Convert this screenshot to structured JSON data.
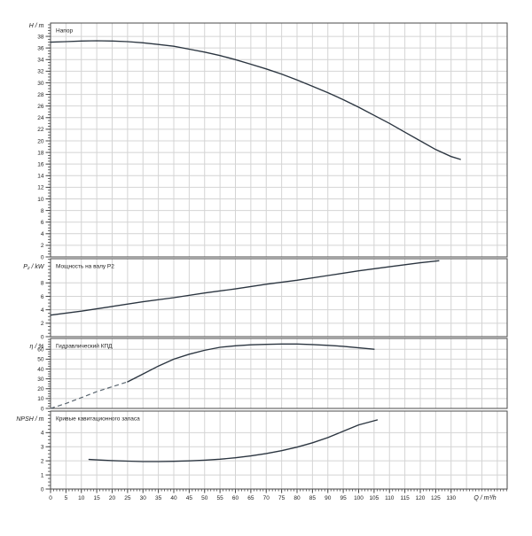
{
  "colors": {
    "background": "#ffffff",
    "curve": "#2b3540",
    "curve_dashed": "#5a6670",
    "grid": "#d4d4d4",
    "frame": "#4a4a4a",
    "text": "#222222"
  },
  "x_axis": {
    "label": "Q / m³/h",
    "tick_labels": [
      0,
      5,
      10,
      15,
      20,
      25,
      30,
      35,
      40,
      45,
      50,
      55,
      60,
      65,
      70,
      75,
      80,
      85,
      90,
      95,
      100,
      105,
      110,
      115,
      120,
      125,
      130
    ],
    "major_step": 5,
    "minor_step": 1,
    "range": [
      0,
      148
    ]
  },
  "chart_data": [
    {
      "type": "line",
      "name": "head",
      "curve_label": "Напор",
      "axis_label": "H / m",
      "y_tick_labels": [
        0,
        2,
        4,
        6,
        8,
        10,
        12,
        14,
        16,
        18,
        20,
        22,
        24,
        26,
        28,
        30,
        32,
        34,
        36,
        38
      ],
      "y_minor_step": 0.5,
      "y_range": [
        0,
        40.3
      ],
      "points": [
        [
          0,
          37.0
        ],
        [
          5,
          37.1
        ],
        [
          10,
          37.2
        ],
        [
          15,
          37.25
        ],
        [
          20,
          37.2
        ],
        [
          25,
          37.1
        ],
        [
          30,
          36.9
        ],
        [
          35,
          36.6
        ],
        [
          40,
          36.3
        ],
        [
          45,
          35.8
        ],
        [
          50,
          35.3
        ],
        [
          55,
          34.7
        ],
        [
          60,
          34.0
        ],
        [
          65,
          33.2
        ],
        [
          70,
          32.4
        ],
        [
          75,
          31.5
        ],
        [
          80,
          30.5
        ],
        [
          85,
          29.4
        ],
        [
          90,
          28.3
        ],
        [
          95,
          27.1
        ],
        [
          100,
          25.8
        ],
        [
          105,
          24.4
        ],
        [
          110,
          23.0
        ],
        [
          115,
          21.5
        ],
        [
          120,
          20.0
        ],
        [
          125,
          18.5
        ],
        [
          130,
          17.3
        ],
        [
          133,
          16.8
        ]
      ]
    },
    {
      "type": "line",
      "name": "power",
      "curve_label": "Мощность на валу P2",
      "axis_label": "P₂ / kW",
      "y_tick_labels": [
        0,
        2,
        4,
        6,
        8
      ],
      "y_minor_step": 0.5,
      "y_range": [
        0,
        11.6
      ],
      "points": [
        [
          0,
          3.2
        ],
        [
          10,
          3.8
        ],
        [
          20,
          4.5
        ],
        [
          30,
          5.2
        ],
        [
          40,
          5.8
        ],
        [
          50,
          6.5
        ],
        [
          60,
          7.1
        ],
        [
          70,
          7.8
        ],
        [
          80,
          8.4
        ],
        [
          90,
          9.1
        ],
        [
          100,
          9.8
        ],
        [
          110,
          10.4
        ],
        [
          120,
          11.0
        ],
        [
          126,
          11.3
        ]
      ]
    },
    {
      "type": "line",
      "name": "efficiency",
      "curve_label": "Гидравлический КПД",
      "axis_label": "η / %",
      "y_tick_labels": [
        0,
        10,
        20,
        30,
        40,
        50,
        60
      ],
      "y_minor_step": 2.5,
      "y_range": [
        0,
        71
      ],
      "points_dashed": [
        [
          0,
          0
        ],
        [
          5,
          5
        ],
        [
          10,
          11
        ],
        [
          15,
          17
        ],
        [
          20,
          22
        ],
        [
          25,
          27
        ]
      ],
      "points": [
        [
          25,
          27
        ],
        [
          30,
          35
        ],
        [
          35,
          43
        ],
        [
          40,
          50
        ],
        [
          45,
          55
        ],
        [
          50,
          59
        ],
        [
          55,
          62
        ],
        [
          60,
          63.5
        ],
        [
          65,
          64.5
        ],
        [
          70,
          65
        ],
        [
          75,
          65.3
        ],
        [
          80,
          65.3
        ],
        [
          85,
          64.8
        ],
        [
          90,
          64
        ],
        [
          95,
          63
        ],
        [
          100,
          61.5
        ],
        [
          105,
          60
        ]
      ]
    },
    {
      "type": "line",
      "name": "npsh",
      "curve_label": "Кривые кавитационного запаса",
      "axis_label": "NPSH / m",
      "y_tick_labels": [
        0,
        1,
        2,
        3,
        4
      ],
      "y_minor_step": 0.25,
      "y_range": [
        0,
        5.53
      ],
      "points": [
        [
          12.5,
          2.1
        ],
        [
          15,
          2.07
        ],
        [
          20,
          2.02
        ],
        [
          25,
          1.98
        ],
        [
          30,
          1.95
        ],
        [
          35,
          1.95
        ],
        [
          40,
          1.97
        ],
        [
          45,
          2.0
        ],
        [
          50,
          2.05
        ],
        [
          55,
          2.12
        ],
        [
          60,
          2.22
        ],
        [
          65,
          2.35
        ],
        [
          70,
          2.52
        ],
        [
          75,
          2.72
        ],
        [
          80,
          2.97
        ],
        [
          85,
          3.28
        ],
        [
          90,
          3.65
        ],
        [
          95,
          4.1
        ],
        [
          100,
          4.55
        ],
        [
          106,
          4.9
        ]
      ]
    }
  ]
}
